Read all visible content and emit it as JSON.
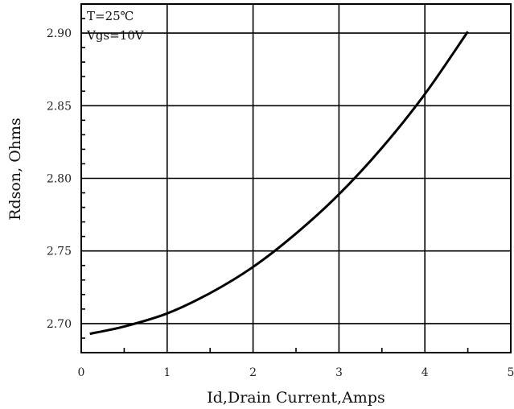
{
  "chart_data": {
    "type": "line",
    "title": "",
    "xlabel": "Id,Drain Current,Amps",
    "ylabel": "Rdson, Ohms",
    "xlim": [
      0,
      5
    ],
    "ylim": [
      2.68,
      2.92
    ],
    "x_ticks": [
      "0",
      "1",
      "2",
      "3",
      "4",
      "5"
    ],
    "y_ticks": [
      "2.70",
      "2.75",
      "2.80",
      "2.85",
      "2.90"
    ],
    "grid": true,
    "annotations": [
      "T=25℃",
      "Vgs=10V"
    ],
    "series": [
      {
        "x": [
          0.1,
          0.5,
          1.0,
          1.5,
          2.0,
          2.5,
          3.0,
          3.5,
          4.0,
          4.5
        ],
        "y": [
          2.693,
          2.698,
          2.707,
          2.721,
          2.739,
          2.762,
          2.789,
          2.821,
          2.858,
          2.901
        ]
      }
    ]
  }
}
